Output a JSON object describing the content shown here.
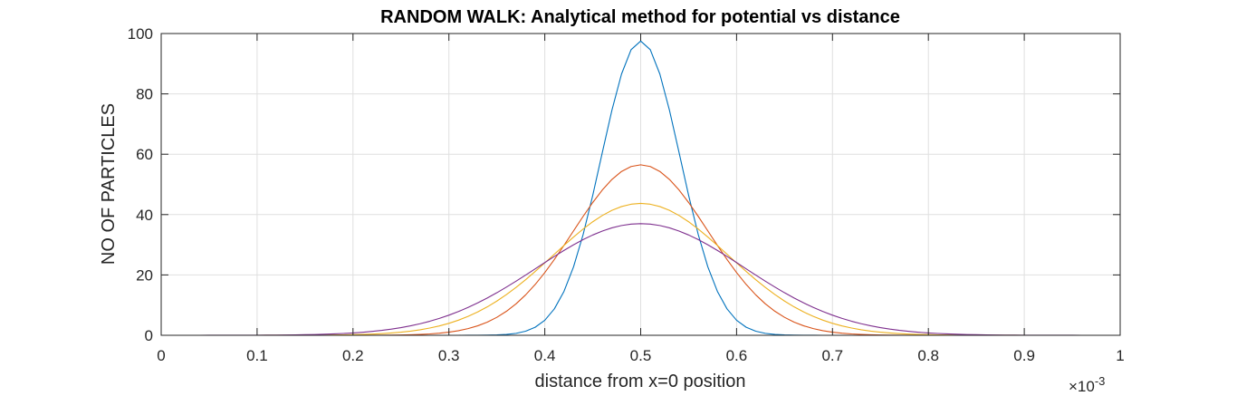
{
  "chart_data": {
    "type": "line",
    "title": "RANDOM WALK: Analytical method for potential vs distance",
    "xlabel": "distance from x=0 position",
    "ylabel": "NO OF PARTICLES",
    "xlim": [
      0,
      0.001
    ],
    "ylim": [
      0,
      100
    ],
    "x_multiplier": {
      "base": "×10",
      "exponent": "-3"
    },
    "x_ticks": [
      0,
      0.0001,
      0.0002,
      0.0003,
      0.0004,
      0.0005,
      0.0006,
      0.0007,
      0.0008,
      0.0009,
      0.001
    ],
    "x_tick_labels": [
      "0",
      "0.1",
      "0.2",
      "0.3",
      "0.4",
      "0.5",
      "0.6",
      "0.7",
      "0.8",
      "0.9",
      "1"
    ],
    "y_ticks": [
      0,
      20,
      40,
      60,
      80,
      100
    ],
    "y_tick_labels": [
      "0",
      "20",
      "40",
      "60",
      "80",
      "100"
    ],
    "grid": true,
    "box": true,
    "series_curve": "gaussian",
    "series": [
      {
        "color": "#0072BD",
        "center": 0.0005,
        "peak": 97.5,
        "sigma": 4.1e-05
      },
      {
        "color": "#D95319",
        "center": 0.0005,
        "peak": 56.5,
        "sigma": 7.07e-05
      },
      {
        "color": "#EDB120",
        "center": 0.0005,
        "peak": 43.7,
        "sigma": 9.13e-05
      },
      {
        "color": "#7E2F8E",
        "center": 0.0005,
        "peak": 37.0,
        "sigma": 0.000108
      }
    ],
    "sample_x": {
      "start": 0,
      "end": 0.001,
      "step": 1e-05
    }
  }
}
